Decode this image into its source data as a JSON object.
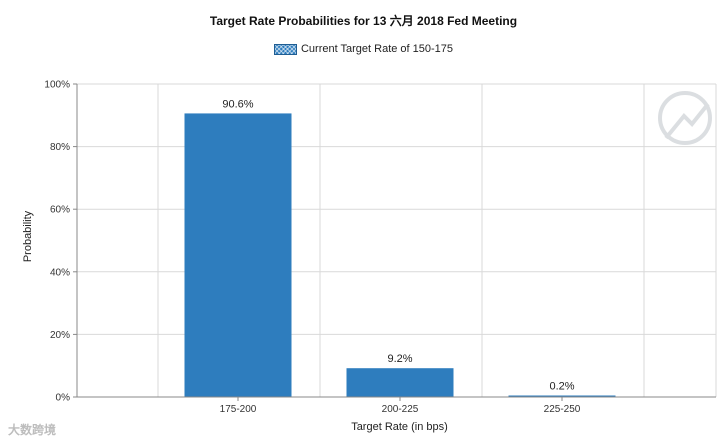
{
  "watermark_text": "大数跨境",
  "chart_data": {
    "type": "bar",
    "title": "Target Rate Probabilities for 13 六月 2018 Fed Meeting",
    "legend": {
      "position": "top-center",
      "entries": [
        "Current Target Rate of 150-175"
      ]
    },
    "xlabel": "Target Rate (in bps)",
    "ylabel": "Probability",
    "categories": [
      "175-200",
      "200-225",
      "225-250"
    ],
    "series": [
      {
        "name": "Current Target Rate of 150-175",
        "values": [
          90.6,
          9.2,
          0.2
        ],
        "color": "#2e7dbe"
      }
    ],
    "data_labels": [
      "90.6%",
      "9.2%",
      "0.2%"
    ],
    "yticks": [
      "0%",
      "20%",
      "40%",
      "60%",
      "80%",
      "100%"
    ],
    "ylim": [
      0,
      100
    ],
    "grid": true
  }
}
